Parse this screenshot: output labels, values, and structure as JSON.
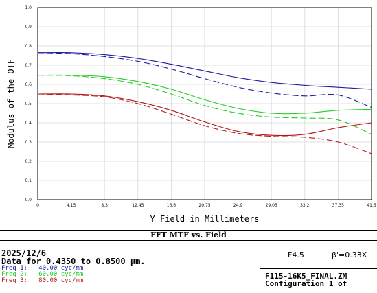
{
  "chart_data": {
    "type": "line",
    "title": "FFT MTF vs. Field",
    "xlabel": "Y Field in Millimeters",
    "ylabel": "Modulus of the OTF",
    "xlim": [
      0,
      41.5
    ],
    "ylim": [
      0,
      1.0
    ],
    "x_ticks": [
      "0",
      "4.15",
      "8.3",
      "12.45",
      "16.6",
      "20.75",
      "24.9",
      "29.05",
      "33.2",
      "37.35",
      "41.5"
    ],
    "y_ticks": [
      "0.0",
      "0.1",
      "0.2",
      "0.3",
      "0.4",
      "0.5",
      "0.6",
      "0.7",
      "0.8",
      "0.9",
      "1.0"
    ],
    "grid": true,
    "x": [
      0,
      4.15,
      8.3,
      12.45,
      16.6,
      20.75,
      24.9,
      29.05,
      33.2,
      37.35,
      41.5
    ],
    "series": [
      {
        "name": "Freq 1: 40.00 cyc/mm",
        "color": "#1a1aa0",
        "dash": "solid",
        "values": [
          0.765,
          0.765,
          0.755,
          0.735,
          0.705,
          0.67,
          0.635,
          0.61,
          0.595,
          0.585,
          0.575
        ]
      },
      {
        "name": "Freq 1: 40.00 cyc/mm",
        "color": "#1a1aa0",
        "dash": "dashed",
        "values": [
          0.765,
          0.76,
          0.745,
          0.72,
          0.68,
          0.63,
          0.585,
          0.555,
          0.54,
          0.545,
          0.48
        ]
      },
      {
        "name": "Freq 2: 60.00 cyc/mm",
        "color": "#22cc22",
        "dash": "solid",
        "values": [
          0.648,
          0.648,
          0.64,
          0.615,
          0.575,
          0.52,
          0.475,
          0.45,
          0.45,
          0.465,
          0.47
        ]
      },
      {
        "name": "Freq 2: 60.00 cyc/mm",
        "color": "#22cc22",
        "dash": "dashed",
        "values": [
          0.648,
          0.645,
          0.63,
          0.6,
          0.55,
          0.49,
          0.45,
          0.43,
          0.425,
          0.415,
          0.34
        ]
      },
      {
        "name": "Freq 3: 80.00 cyc/mm",
        "color": "#b01818",
        "dash": "solid",
        "values": [
          0.55,
          0.55,
          0.54,
          0.51,
          0.465,
          0.405,
          0.355,
          0.335,
          0.34,
          0.375,
          0.4
        ]
      },
      {
        "name": "Freq 3: 80.00 cyc/mm",
        "color": "#b01818",
        "dash": "dashed",
        "values": [
          0.55,
          0.545,
          0.535,
          0.5,
          0.445,
          0.385,
          0.345,
          0.33,
          0.325,
          0.3,
          0.24
        ]
      }
    ]
  },
  "info": {
    "date": "2025/12/6",
    "wavelength": "Data for 0.4350 to 0.8500 µm.",
    "freqs": [
      {
        "label": "Freq 1:   40.00 cyc/mm",
        "color": "#1a1aa0"
      },
      {
        "label": "Freq 2:   60.00 cyc/mm",
        "color": "#22cc22"
      },
      {
        "label": "Freq 3:   80.00 cyc/mm",
        "color": "#b01818"
      }
    ],
    "fnumber": "F4.5",
    "magnification": "β'=0.33X",
    "filename": "F115-16K5_FINAL.ZM",
    "configuration": "Configuration 1 of"
  }
}
